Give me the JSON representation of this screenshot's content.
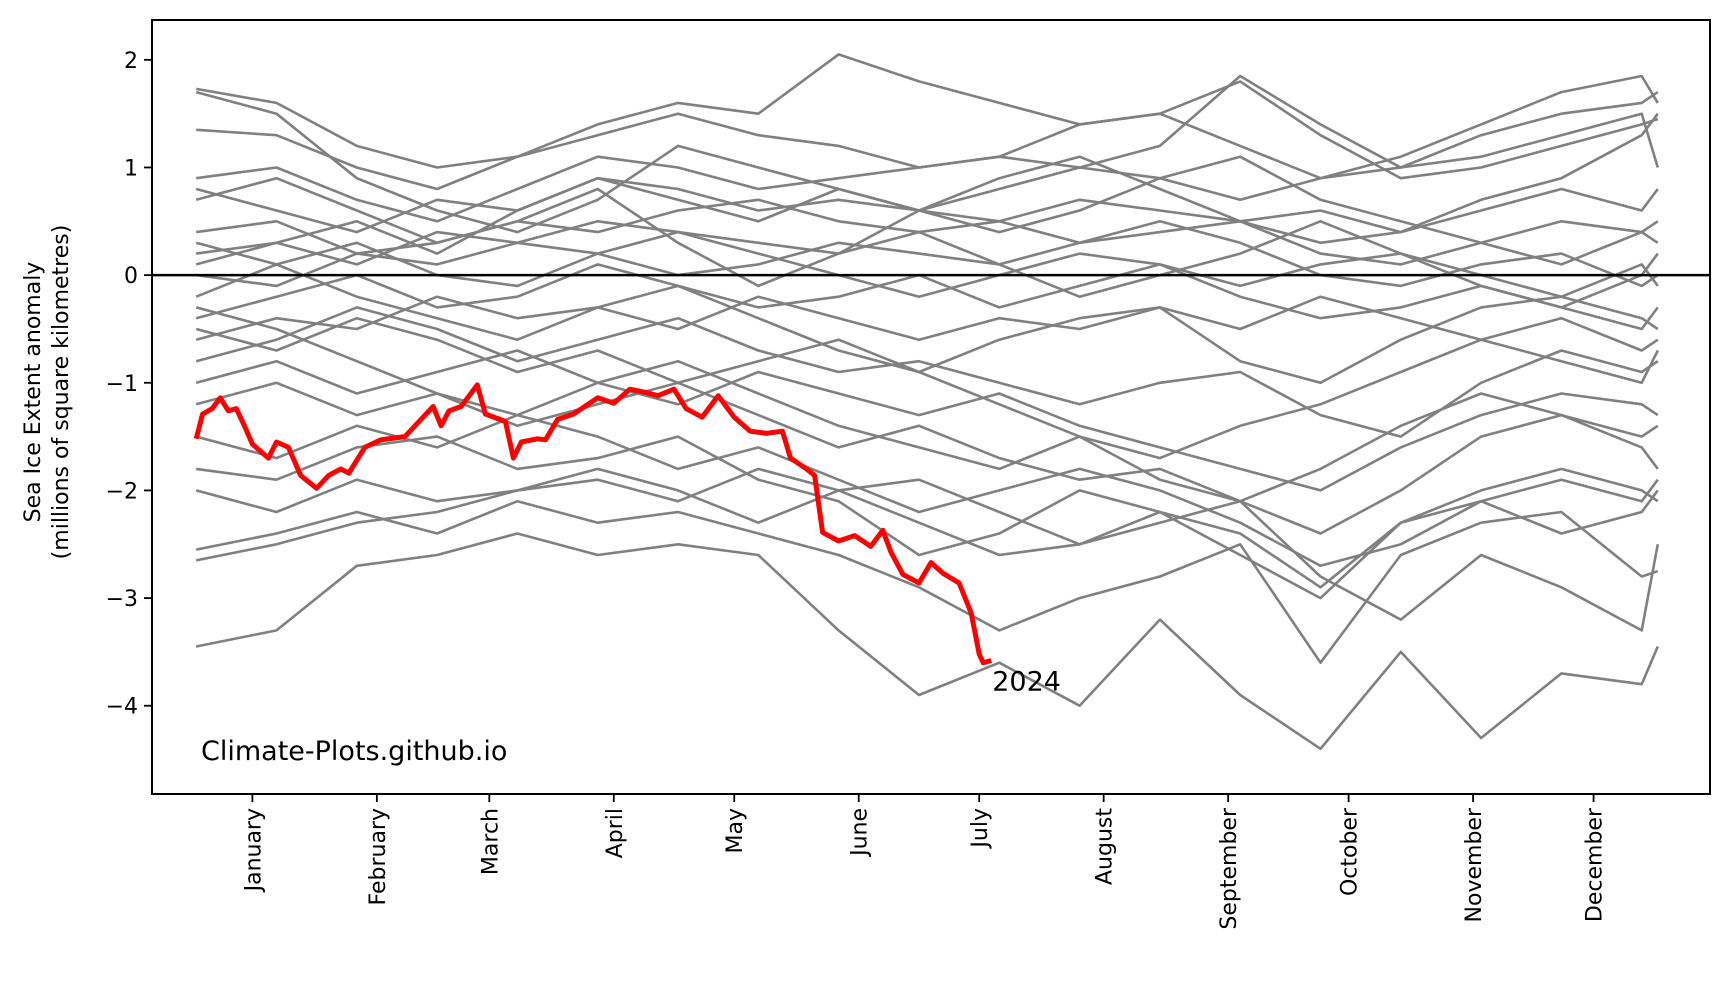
{
  "chart_data": {
    "type": "line",
    "title": "",
    "xlabel": "",
    "ylabel": [
      "Sea Ice Extent anomaly",
      "(millions of square kilometres)"
    ],
    "xlim_day_of_year": [
      -10,
      378
    ],
    "ylim": [
      -4.82,
      2.37
    ],
    "grid": false,
    "reference_line": {
      "y": 0,
      "color": "#000000"
    },
    "y_ticks": [
      -4,
      -3,
      -2,
      -1,
      0,
      1,
      2
    ],
    "y_tick_labels": [
      "−4",
      "−3",
      "−2",
      "−1",
      "0",
      "1",
      "2"
    ],
    "x_ticks": {
      "days": [
        15,
        46,
        74,
        105,
        135,
        166,
        196,
        227,
        258,
        288,
        319,
        349
      ],
      "labels": [
        "January",
        "February",
        "March",
        "April",
        "May",
        "June",
        "July",
        "August",
        "September",
        "October",
        "November",
        "December"
      ]
    },
    "watermark": "Climate-Plots.github.io",
    "highlight": {
      "name": "2024",
      "label": "2024",
      "color": "#ff0000",
      "x": [
        1,
        2.6,
        5,
        7,
        9,
        11,
        13,
        15,
        19,
        21,
        24,
        27,
        31,
        34,
        37,
        39,
        43,
        47,
        53,
        57,
        60,
        62,
        64,
        67,
        71,
        73,
        78,
        80,
        82,
        86,
        88,
        91,
        95,
        101,
        105,
        109,
        113,
        116,
        120,
        123,
        127,
        131,
        135,
        139,
        143,
        147,
        149,
        153,
        155,
        157,
        161,
        165,
        169,
        172,
        174,
        177,
        181,
        184,
        187,
        191,
        194,
        196,
        197,
        199
      ],
      "y": [
        -1.52,
        -1.29,
        -1.24,
        -1.14,
        -1.26,
        -1.24,
        -1.4,
        -1.57,
        -1.7,
        -1.55,
        -1.6,
        -1.86,
        -1.98,
        -1.86,
        -1.8,
        -1.84,
        -1.6,
        -1.53,
        -1.5,
        -1.34,
        -1.22,
        -1.4,
        -1.26,
        -1.22,
        -1.02,
        -1.29,
        -1.36,
        -1.7,
        -1.55,
        -1.52,
        -1.53,
        -1.34,
        -1.29,
        -1.14,
        -1.19,
        -1.06,
        -1.09,
        -1.12,
        -1.06,
        -1.24,
        -1.32,
        -1.12,
        -1.32,
        -1.45,
        -1.47,
        -1.45,
        -1.7,
        -1.8,
        -1.86,
        -2.39,
        -2.47,
        -2.42,
        -2.52,
        -2.37,
        -2.57,
        -2.78,
        -2.86,
        -2.67,
        -2.77,
        -2.86,
        -3.14,
        -3.52,
        -3.6,
        -3.58
      ]
    },
    "background_series": {
      "color": "#808080",
      "x": [
        1,
        21,
        41,
        61,
        81,
        101,
        121,
        141,
        161,
        181,
        201,
        221,
        241,
        261,
        281,
        301,
        321,
        341,
        361,
        365
      ],
      "series": [
        [
          1.73,
          1.6,
          1.2,
          1.0,
          1.1,
          1.3,
          1.5,
          1.3,
          1.2,
          1.0,
          1.1,
          1.4,
          1.5,
          1.2,
          0.9,
          1.0,
          1.3,
          1.5,
          1.6,
          1.7
        ],
        [
          1.35,
          1.3,
          1.0,
          0.8,
          1.1,
          1.4,
          1.6,
          1.5,
          2.05,
          1.8,
          1.6,
          1.4,
          1.5,
          1.8,
          1.3,
          0.9,
          1.0,
          1.2,
          1.4,
          1.45
        ],
        [
          0.9,
          1.0,
          0.7,
          0.5,
          0.8,
          1.1,
          1.0,
          0.8,
          0.9,
          1.0,
          1.1,
          1.0,
          1.2,
          1.85,
          1.4,
          1.0,
          1.1,
          1.3,
          1.5,
          1.0
        ],
        [
          0.8,
          0.6,
          0.4,
          0.7,
          0.6,
          0.9,
          0.8,
          0.6,
          0.7,
          0.6,
          0.8,
          1.0,
          0.9,
          0.7,
          0.9,
          1.1,
          1.4,
          1.7,
          1.85,
          1.6
        ],
        [
          0.4,
          0.5,
          0.2,
          0.3,
          0.5,
          0.4,
          0.6,
          0.7,
          0.5,
          0.4,
          0.5,
          0.7,
          0.6,
          0.5,
          0.3,
          0.4,
          0.6,
          0.8,
          0.6,
          0.8
        ],
        [
          0.2,
          0.3,
          0.1,
          0.4,
          0.3,
          0.5,
          0.4,
          0.3,
          0.2,
          0.6,
          0.5,
          0.3,
          0.4,
          0.5,
          0.2,
          0.1,
          0.3,
          0.5,
          0.4,
          0.3
        ],
        [
          0.0,
          -0.1,
          0.2,
          0.1,
          0.3,
          0.2,
          0.0,
          0.1,
          0.3,
          0.2,
          0.1,
          0.3,
          0.5,
          0.3,
          0.0,
          -0.1,
          0.1,
          0.2,
          -0.1,
          0.0
        ],
        [
          -0.2,
          0.1,
          0.3,
          0.0,
          -0.1,
          0.2,
          0.4,
          0.2,
          0.0,
          -0.2,
          0.0,
          0.2,
          0.1,
          -0.1,
          0.1,
          0.2,
          0.0,
          -0.2,
          0.1,
          -0.1
        ],
        [
          -0.4,
          -0.2,
          0.0,
          -0.3,
          -0.2,
          0.1,
          -0.1,
          -0.3,
          -0.2,
          0.0,
          -0.3,
          -0.1,
          0.1,
          -0.2,
          -0.4,
          -0.3,
          -0.1,
          -0.3,
          -0.5,
          -0.3
        ],
        [
          -0.6,
          -0.4,
          -0.5,
          -0.2,
          -0.4,
          -0.3,
          -0.5,
          -0.2,
          -0.4,
          -0.6,
          -0.4,
          -0.5,
          -0.3,
          -0.5,
          -0.2,
          -0.4,
          -0.6,
          -0.4,
          -0.7,
          -0.6
        ],
        [
          0.3,
          0.1,
          -0.2,
          -0.4,
          -0.6,
          -0.3,
          -0.1,
          -0.4,
          -0.7,
          -0.9,
          -0.6,
          -0.4,
          -0.3,
          -0.8,
          -1.0,
          -0.6,
          -0.3,
          -0.2,
          -0.4,
          -0.5
        ],
        [
          -0.8,
          -0.6,
          -0.3,
          -0.5,
          -0.8,
          -0.6,
          -0.4,
          -0.7,
          -0.9,
          -0.8,
          -1.0,
          -1.2,
          -1.0,
          -0.9,
          -1.3,
          -1.5,
          -1.0,
          -0.7,
          -0.9,
          -0.8
        ],
        [
          -1.0,
          -0.8,
          -1.1,
          -0.9,
          -0.7,
          -1.0,
          -1.2,
          -0.9,
          -1.1,
          -1.3,
          -1.1,
          -1.4,
          -1.6,
          -1.8,
          -2.0,
          -1.6,
          -1.3,
          -1.1,
          -1.2,
          -1.3
        ],
        [
          -1.2,
          -1.0,
          -1.3,
          -1.1,
          -1.4,
          -1.2,
          -1.0,
          -1.3,
          -1.6,
          -1.4,
          -1.7,
          -1.9,
          -1.8,
          -2.1,
          -2.4,
          -2.0,
          -1.5,
          -1.3,
          -1.5,
          -1.4
        ],
        [
          -1.5,
          -1.7,
          -1.4,
          -1.6,
          -1.3,
          -1.5,
          -1.8,
          -1.6,
          -1.9,
          -2.2,
          -2.0,
          -1.8,
          -2.0,
          -2.3,
          -2.7,
          -2.5,
          -2.1,
          -1.9,
          -2.1,
          -1.9
        ],
        [
          -1.8,
          -1.9,
          -1.6,
          -1.5,
          -1.8,
          -1.7,
          -1.5,
          -1.9,
          -2.1,
          -2.6,
          -2.4,
          -2.0,
          -2.2,
          -2.6,
          -3.0,
          -2.3,
          -2.1,
          -2.4,
          -2.2,
          -2.0
        ],
        [
          -2.0,
          -2.2,
          -1.9,
          -2.1,
          -2.0,
          -1.8,
          -2.0,
          -2.3,
          -2.0,
          -1.9,
          -2.2,
          -2.5,
          -2.3,
          -2.1,
          -2.8,
          -3.2,
          -2.6,
          -2.9,
          -3.3,
          -2.5
        ],
        [
          -2.55,
          -2.4,
          -2.2,
          -2.4,
          -2.1,
          -2.3,
          -2.2,
          -2.4,
          -2.6,
          -2.9,
          -3.3,
          -3.0,
          -2.8,
          -2.5,
          -3.6,
          -2.6,
          -2.3,
          -2.2,
          -2.8,
          -2.75
        ],
        [
          -3.45,
          -3.3,
          -2.7,
          -2.6,
          -2.4,
          -2.6,
          -2.5,
          -2.6,
          -3.3,
          -3.9,
          -3.6,
          -4.0,
          -3.2,
          -3.9,
          -4.4,
          -3.5,
          -4.3,
          -3.7,
          -3.8,
          -3.45
        ],
        [
          -2.65,
          -2.5,
          -2.3,
          -2.2,
          -2.0,
          -1.9,
          -2.1,
          -1.8,
          -2.0,
          -2.3,
          -2.6,
          -2.5,
          -2.2,
          -2.4,
          -2.9,
          -2.3,
          -2.0,
          -1.8,
          -2.0,
          -2.1
        ],
        [
          1.7,
          1.5,
          0.9,
          0.6,
          0.4,
          0.7,
          1.2,
          1.0,
          0.8,
          0.6,
          0.9,
          1.1,
          0.8,
          0.5,
          0.6,
          0.4,
          0.7,
          0.9,
          1.3,
          1.5
        ],
        [
          0.7,
          0.9,
          0.6,
          0.3,
          0.5,
          0.8,
          0.3,
          -0.1,
          0.2,
          0.4,
          0.1,
          -0.2,
          0.0,
          0.2,
          0.5,
          0.2,
          -0.1,
          -0.3,
          0.0,
          0.2
        ],
        [
          -0.5,
          -0.7,
          -0.4,
          -0.6,
          -0.9,
          -0.7,
          -1.0,
          -0.8,
          -0.6,
          -0.9,
          -1.2,
          -1.5,
          -1.7,
          -1.4,
          -1.2,
          -0.9,
          -0.6,
          -0.8,
          -1.0,
          -0.7
        ],
        [
          0.1,
          0.3,
          0.5,
          0.2,
          0.6,
          0.9,
          0.7,
          0.5,
          0.8,
          0.6,
          0.4,
          0.6,
          0.9,
          1.1,
          0.7,
          0.5,
          0.3,
          0.1,
          0.4,
          0.5
        ],
        [
          -0.3,
          -0.5,
          -0.8,
          -1.1,
          -1.3,
          -1.0,
          -0.8,
          -1.1,
          -1.4,
          -1.6,
          -1.8,
          -1.5,
          -1.9,
          -2.1,
          -1.8,
          -1.4,
          -1.1,
          -1.3,
          -1.6,
          -1.8
        ]
      ]
    }
  }
}
